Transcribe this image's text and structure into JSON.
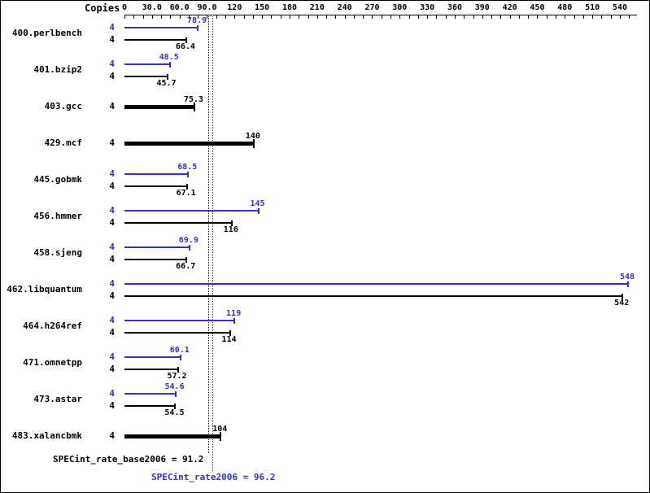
{
  "header": {
    "copies_label": "Copies"
  },
  "footer": {
    "base_summary": "SPECint_rate_base2006 = 91.2",
    "peak_summary": "SPECint_rate2006 = 96.2"
  },
  "chart_data": {
    "type": "bar",
    "orientation": "horizontal",
    "title": "",
    "legend": "none",
    "grid": "off",
    "colors": {
      "peak": "#3333bb",
      "base": "#000000"
    },
    "axis": {
      "min": 0,
      "max": 557,
      "minor_tick_interval": 10,
      "ticks": [
        {
          "value": 0,
          "label": "0"
        },
        {
          "value": 30,
          "label": "30.0"
        },
        {
          "value": 60,
          "label": "60.0"
        },
        {
          "value": 90,
          "label": "90.0"
        },
        {
          "value": 120,
          "label": "120"
        },
        {
          "value": 150,
          "label": "150"
        },
        {
          "value": 180,
          "label": "180"
        },
        {
          "value": 210,
          "label": "210"
        },
        {
          "value": 240,
          "label": "240"
        },
        {
          "value": 270,
          "label": "270"
        },
        {
          "value": 300,
          "label": "300"
        },
        {
          "value": 330,
          "label": "330"
        },
        {
          "value": 360,
          "label": "360"
        },
        {
          "value": 390,
          "label": "390"
        },
        {
          "value": 420,
          "label": "420"
        },
        {
          "value": 450,
          "label": "450"
        },
        {
          "value": 480,
          "label": "480"
        },
        {
          "value": 510,
          "label": "510"
        },
        {
          "value": 540,
          "label": "540"
        }
      ]
    },
    "benchmarks": [
      {
        "name": "400.perlbench",
        "bars": [
          {
            "kind": "peak",
            "copies": "4",
            "value": 78.9,
            "label": "78.9"
          },
          {
            "kind": "base",
            "copies": "4",
            "value": 66.4,
            "label": "66.4"
          }
        ]
      },
      {
        "name": "401.bzip2",
        "bars": [
          {
            "kind": "peak",
            "copies": "4",
            "value": 48.5,
            "label": "48.5"
          },
          {
            "kind": "base",
            "copies": "4",
            "value": 45.7,
            "label": "45.7"
          }
        ]
      },
      {
        "name": "403.gcc",
        "bars": [
          {
            "kind": "single",
            "copies": "4",
            "value": 75.3,
            "label": "75.3"
          }
        ]
      },
      {
        "name": "429.mcf",
        "bars": [
          {
            "kind": "single",
            "copies": "4",
            "value": 140,
            "label": "140"
          }
        ]
      },
      {
        "name": "445.gobmk",
        "bars": [
          {
            "kind": "peak",
            "copies": "4",
            "value": 68.5,
            "label": "68.5"
          },
          {
            "kind": "base",
            "copies": "4",
            "value": 67.1,
            "label": "67.1"
          }
        ]
      },
      {
        "name": "456.hmmer",
        "bars": [
          {
            "kind": "peak",
            "copies": "4",
            "value": 145,
            "label": "145"
          },
          {
            "kind": "base",
            "copies": "4",
            "value": 116,
            "label": "116"
          }
        ]
      },
      {
        "name": "458.sjeng",
        "bars": [
          {
            "kind": "peak",
            "copies": "4",
            "value": 69.9,
            "label": "69.9"
          },
          {
            "kind": "base",
            "copies": "4",
            "value": 66.7,
            "label": "66.7"
          }
        ]
      },
      {
        "name": "462.libquantum",
        "bars": [
          {
            "kind": "peak",
            "copies": "4",
            "value": 548,
            "label": "548"
          },
          {
            "kind": "base",
            "copies": "4",
            "value": 542,
            "label": "542"
          }
        ]
      },
      {
        "name": "464.h264ref",
        "bars": [
          {
            "kind": "peak",
            "copies": "4",
            "value": 119,
            "label": "119"
          },
          {
            "kind": "base",
            "copies": "4",
            "value": 114,
            "label": "114"
          }
        ]
      },
      {
        "name": "471.omnetpp",
        "bars": [
          {
            "kind": "peak",
            "copies": "4",
            "value": 60.1,
            "label": "60.1"
          },
          {
            "kind": "base",
            "copies": "4",
            "value": 57.2,
            "label": "57.2"
          }
        ]
      },
      {
        "name": "473.astar",
        "bars": [
          {
            "kind": "peak",
            "copies": "4",
            "value": 54.6,
            "label": "54.6"
          },
          {
            "kind": "base",
            "copies": "4",
            "value": 54.5,
            "label": "54.5"
          }
        ]
      },
      {
        "name": "483.xalancbmk",
        "bars": [
          {
            "kind": "single",
            "copies": "4",
            "value": 104,
            "label": "104"
          }
        ]
      }
    ],
    "reference_lines": [
      {
        "name": "SPECint_rate_base2006",
        "value": 91.2,
        "label": "SPECint_rate_base2006 = 91.2",
        "color": "#000000"
      },
      {
        "name": "SPECint_rate2006",
        "value": 96.2,
        "label": "SPECint_rate2006 = 96.2",
        "color": "#3333bb"
      }
    ]
  }
}
